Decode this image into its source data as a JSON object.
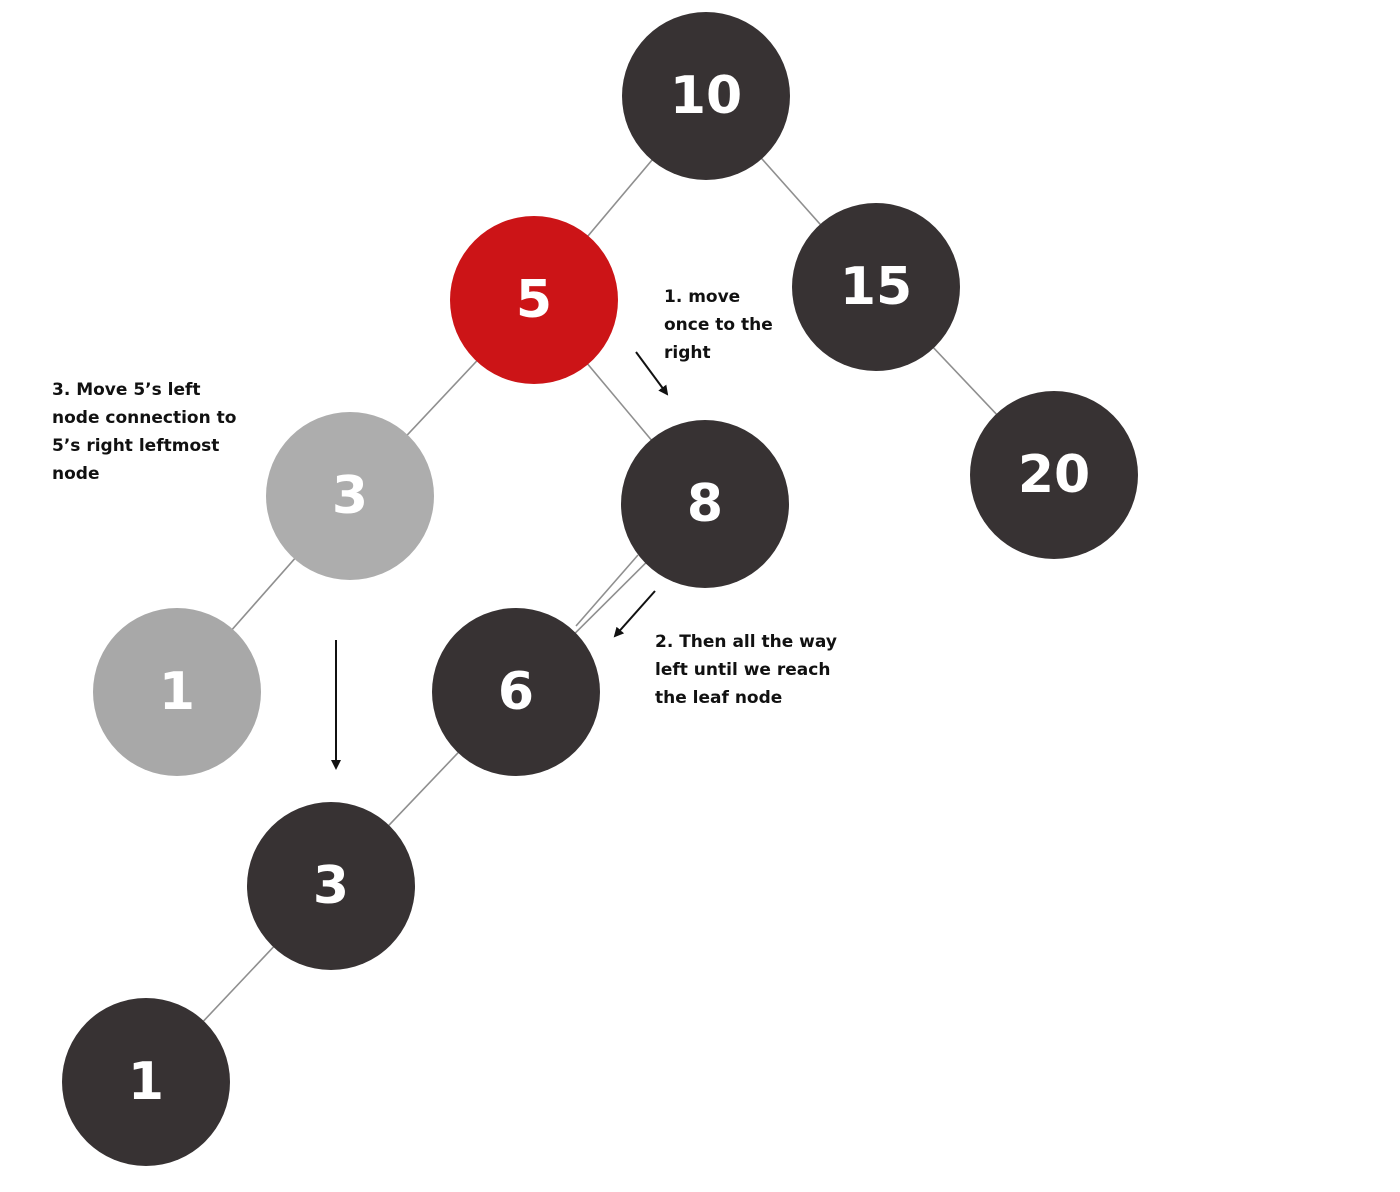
{
  "colors": {
    "dark": "#373233",
    "red": "#cc1417",
    "light_gray": "#adadad",
    "mid_gray": "#a8a8a8",
    "edge": "#8f8f8f",
    "arrow": "#111111",
    "label": "#ffffff"
  },
  "nodes": [
    {
      "id": "n10",
      "label": "10",
      "style": "dark"
    },
    {
      "id": "n5",
      "label": "5",
      "style": "red"
    },
    {
      "id": "n15",
      "label": "15",
      "style": "dark"
    },
    {
      "id": "n3a",
      "label": "3",
      "style": "light_gray"
    },
    {
      "id": "n8",
      "label": "8",
      "style": "dark"
    },
    {
      "id": "n20",
      "label": "20",
      "style": "dark"
    },
    {
      "id": "n1a",
      "label": "1",
      "style": "mid_gray"
    },
    {
      "id": "n6",
      "label": "6",
      "style": "dark"
    },
    {
      "id": "n3b",
      "label": "3",
      "style": "dark"
    },
    {
      "id": "n1b",
      "label": "1",
      "style": "dark"
    }
  ],
  "edges": [
    [
      "n10",
      "n5"
    ],
    [
      "n10",
      "n15"
    ],
    [
      "n5",
      "n3a"
    ],
    [
      "n5",
      "n8"
    ],
    [
      "n15",
      "n20"
    ],
    [
      "n3a",
      "n1a"
    ],
    [
      "n8",
      "n6"
    ],
    [
      "n6",
      "n3b"
    ],
    [
      "n3b",
      "n1b"
    ]
  ],
  "annotations": {
    "step1": [
      "1. move",
      "once to the",
      "right"
    ],
    "step2": [
      "2. Then all the way",
      "left until we reach",
      "the leaf node"
    ],
    "step3": [
      "3. Move 5’s left",
      "node connection to",
      "5’s right leftmost",
      "node"
    ]
  }
}
